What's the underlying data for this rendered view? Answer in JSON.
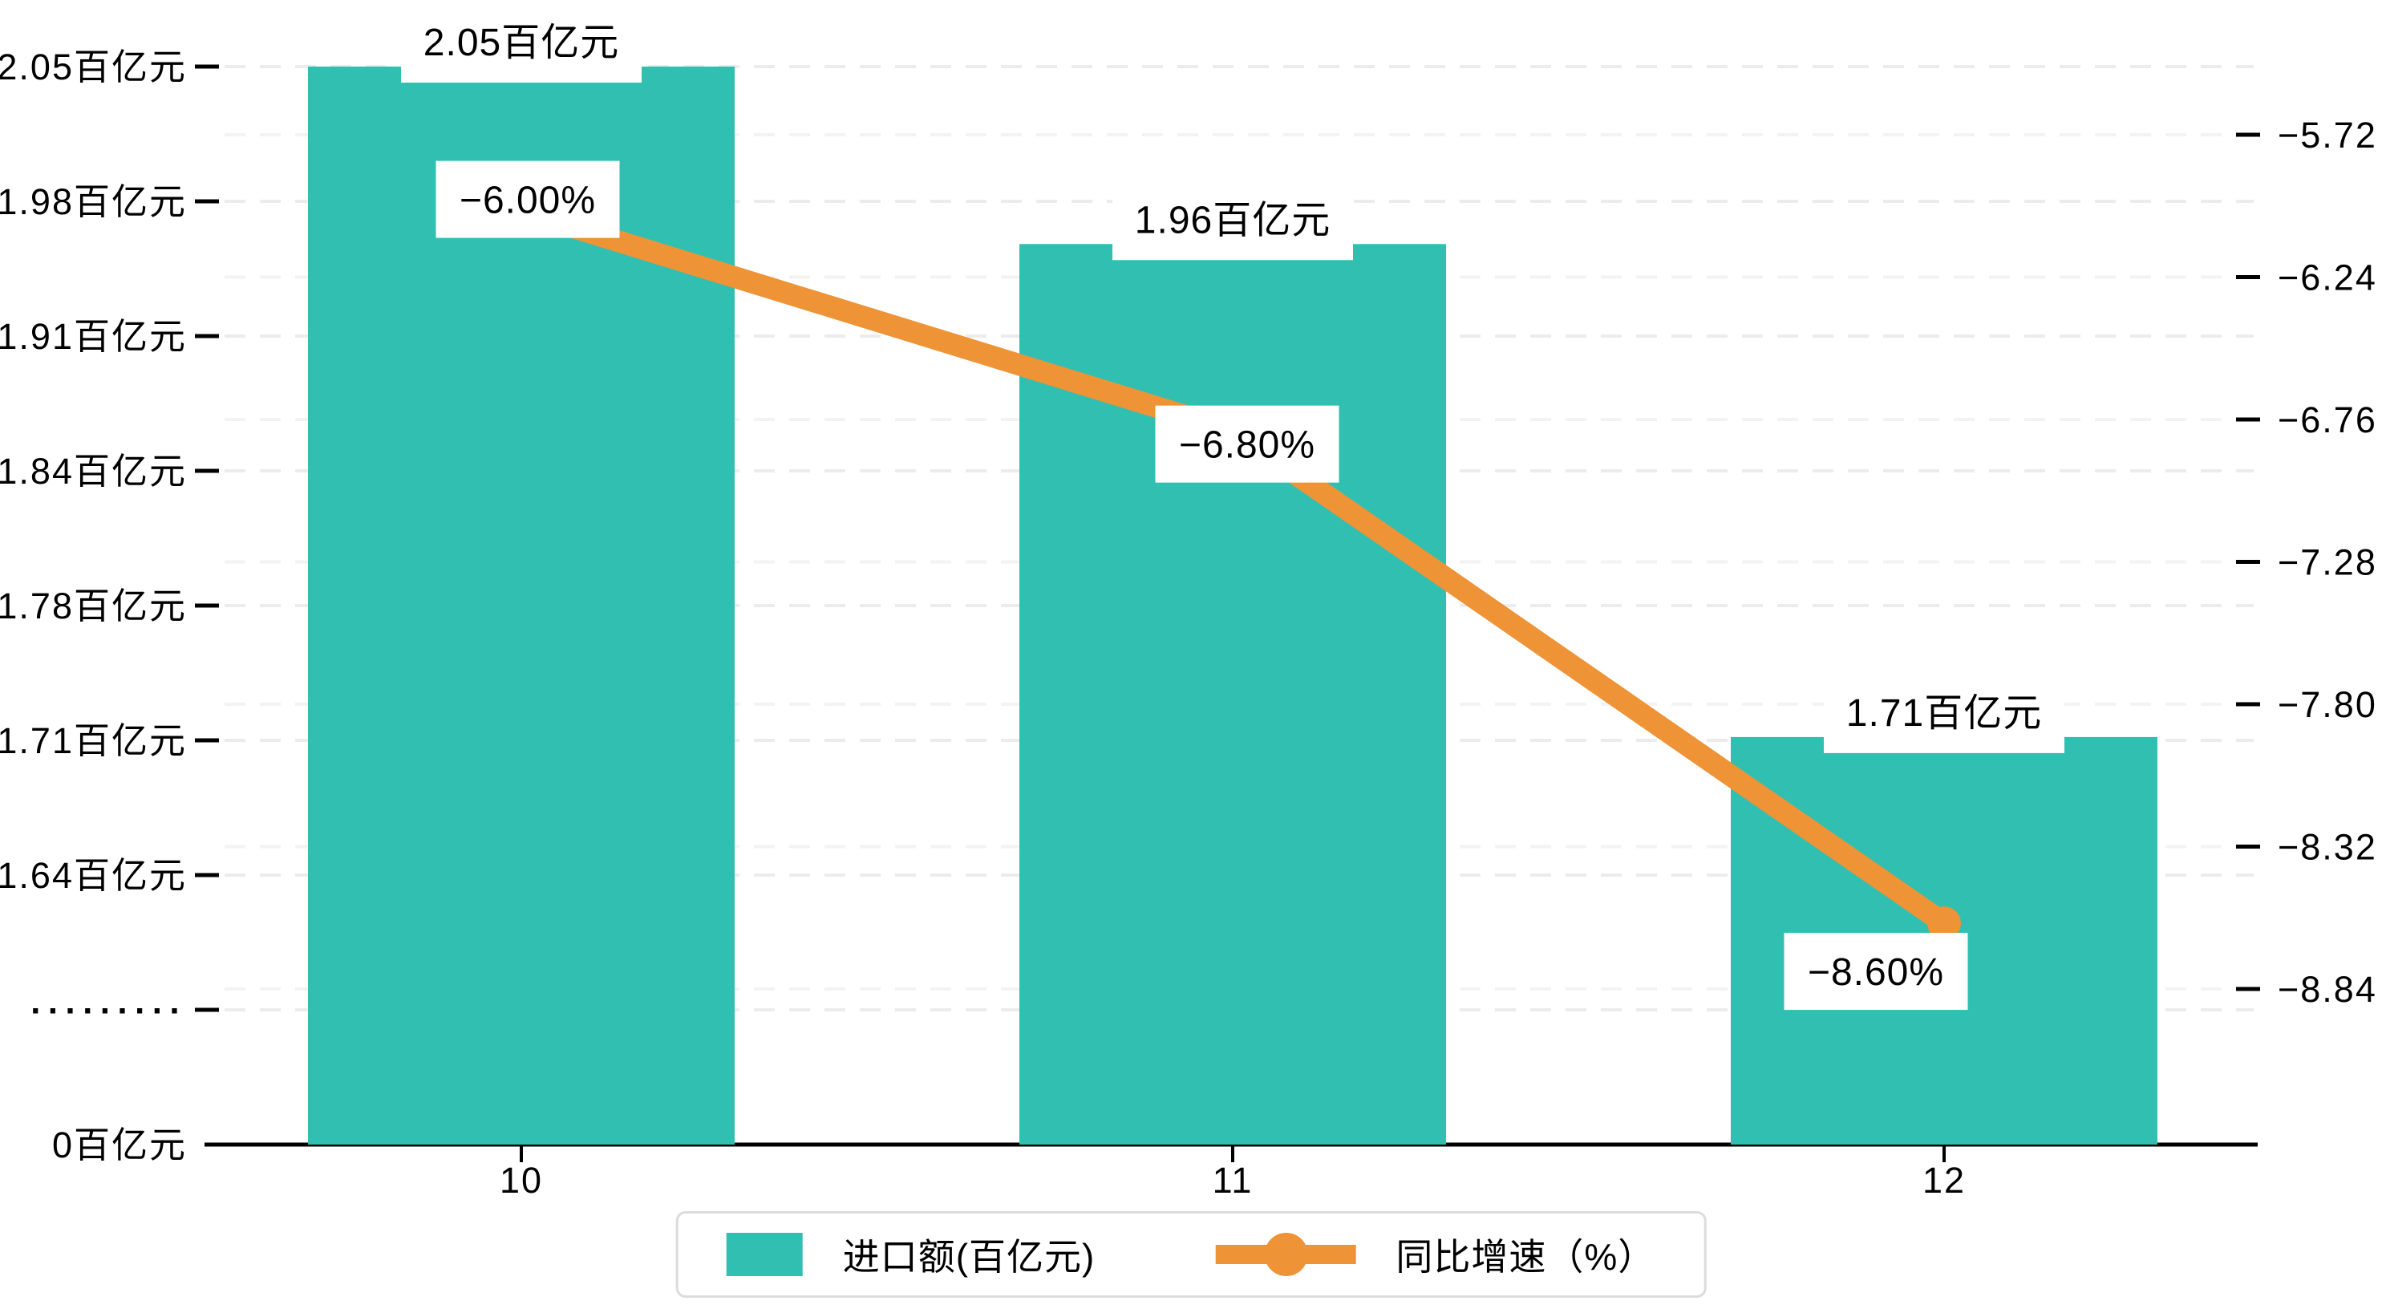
{
  "chart_data": {
    "type": "bar",
    "subtype": "dual-axis bar+line, broken left axis",
    "categories": [
      "10",
      "11",
      "12"
    ],
    "series": [
      {
        "name": "进口额(百亿元)",
        "type": "bar",
        "axis": "left",
        "values": [
          2.05,
          1.96,
          1.71
        ],
        "data_labels": [
          "2.05百亿元",
          "1.96百亿元",
          "1.71百亿元"
        ],
        "color": "#31bfb2"
      },
      {
        "name": "同比增速（%）",
        "type": "line",
        "axis": "right",
        "values": [
          -6.0,
          -6.8,
          -8.6
        ],
        "data_labels": [
          "−6.00%",
          "−6.80%",
          "−8.60%"
        ],
        "color": "#ee9336"
      }
    ],
    "left_axis": {
      "unit": "百亿元",
      "broken": true,
      "tick_labels": [
        "2.05百亿元",
        "1.98百亿元",
        "1.91百亿元",
        "1.84百亿元",
        "1.78百亿元",
        "1.71百亿元",
        "1.64百亿元",
        "·········",
        "0百亿元"
      ],
      "tick_values": [
        2.05,
        1.98,
        1.91,
        1.84,
        1.78,
        1.71,
        1.64,
        null,
        0
      ]
    },
    "right_axis": {
      "tick_labels": [
        "−5.72",
        "−6.24",
        "−6.76",
        "−7.28",
        "−7.80",
        "−8.32",
        "−8.84"
      ],
      "tick_values": [
        -5.72,
        -6.24,
        -6.76,
        -7.28,
        -7.8,
        -8.32,
        -8.84
      ]
    },
    "grid": {
      "horizontal_dashed": true,
      "color_major": "#ececec",
      "color_minor": "#f3f3f3"
    },
    "legend": {
      "position": "bottom-center",
      "items": [
        {
          "label": "进口额(百亿元)",
          "marker": "bar-swatch",
          "color": "#31bfb2"
        },
        {
          "label": "同比增速（%）",
          "marker": "line-dot",
          "color": "#ee9336"
        }
      ]
    },
    "colors": {
      "bar": "#31bfb2",
      "line": "#ee9336",
      "axis_line": "#000000",
      "label_box_bg": "#ffffff"
    }
  }
}
